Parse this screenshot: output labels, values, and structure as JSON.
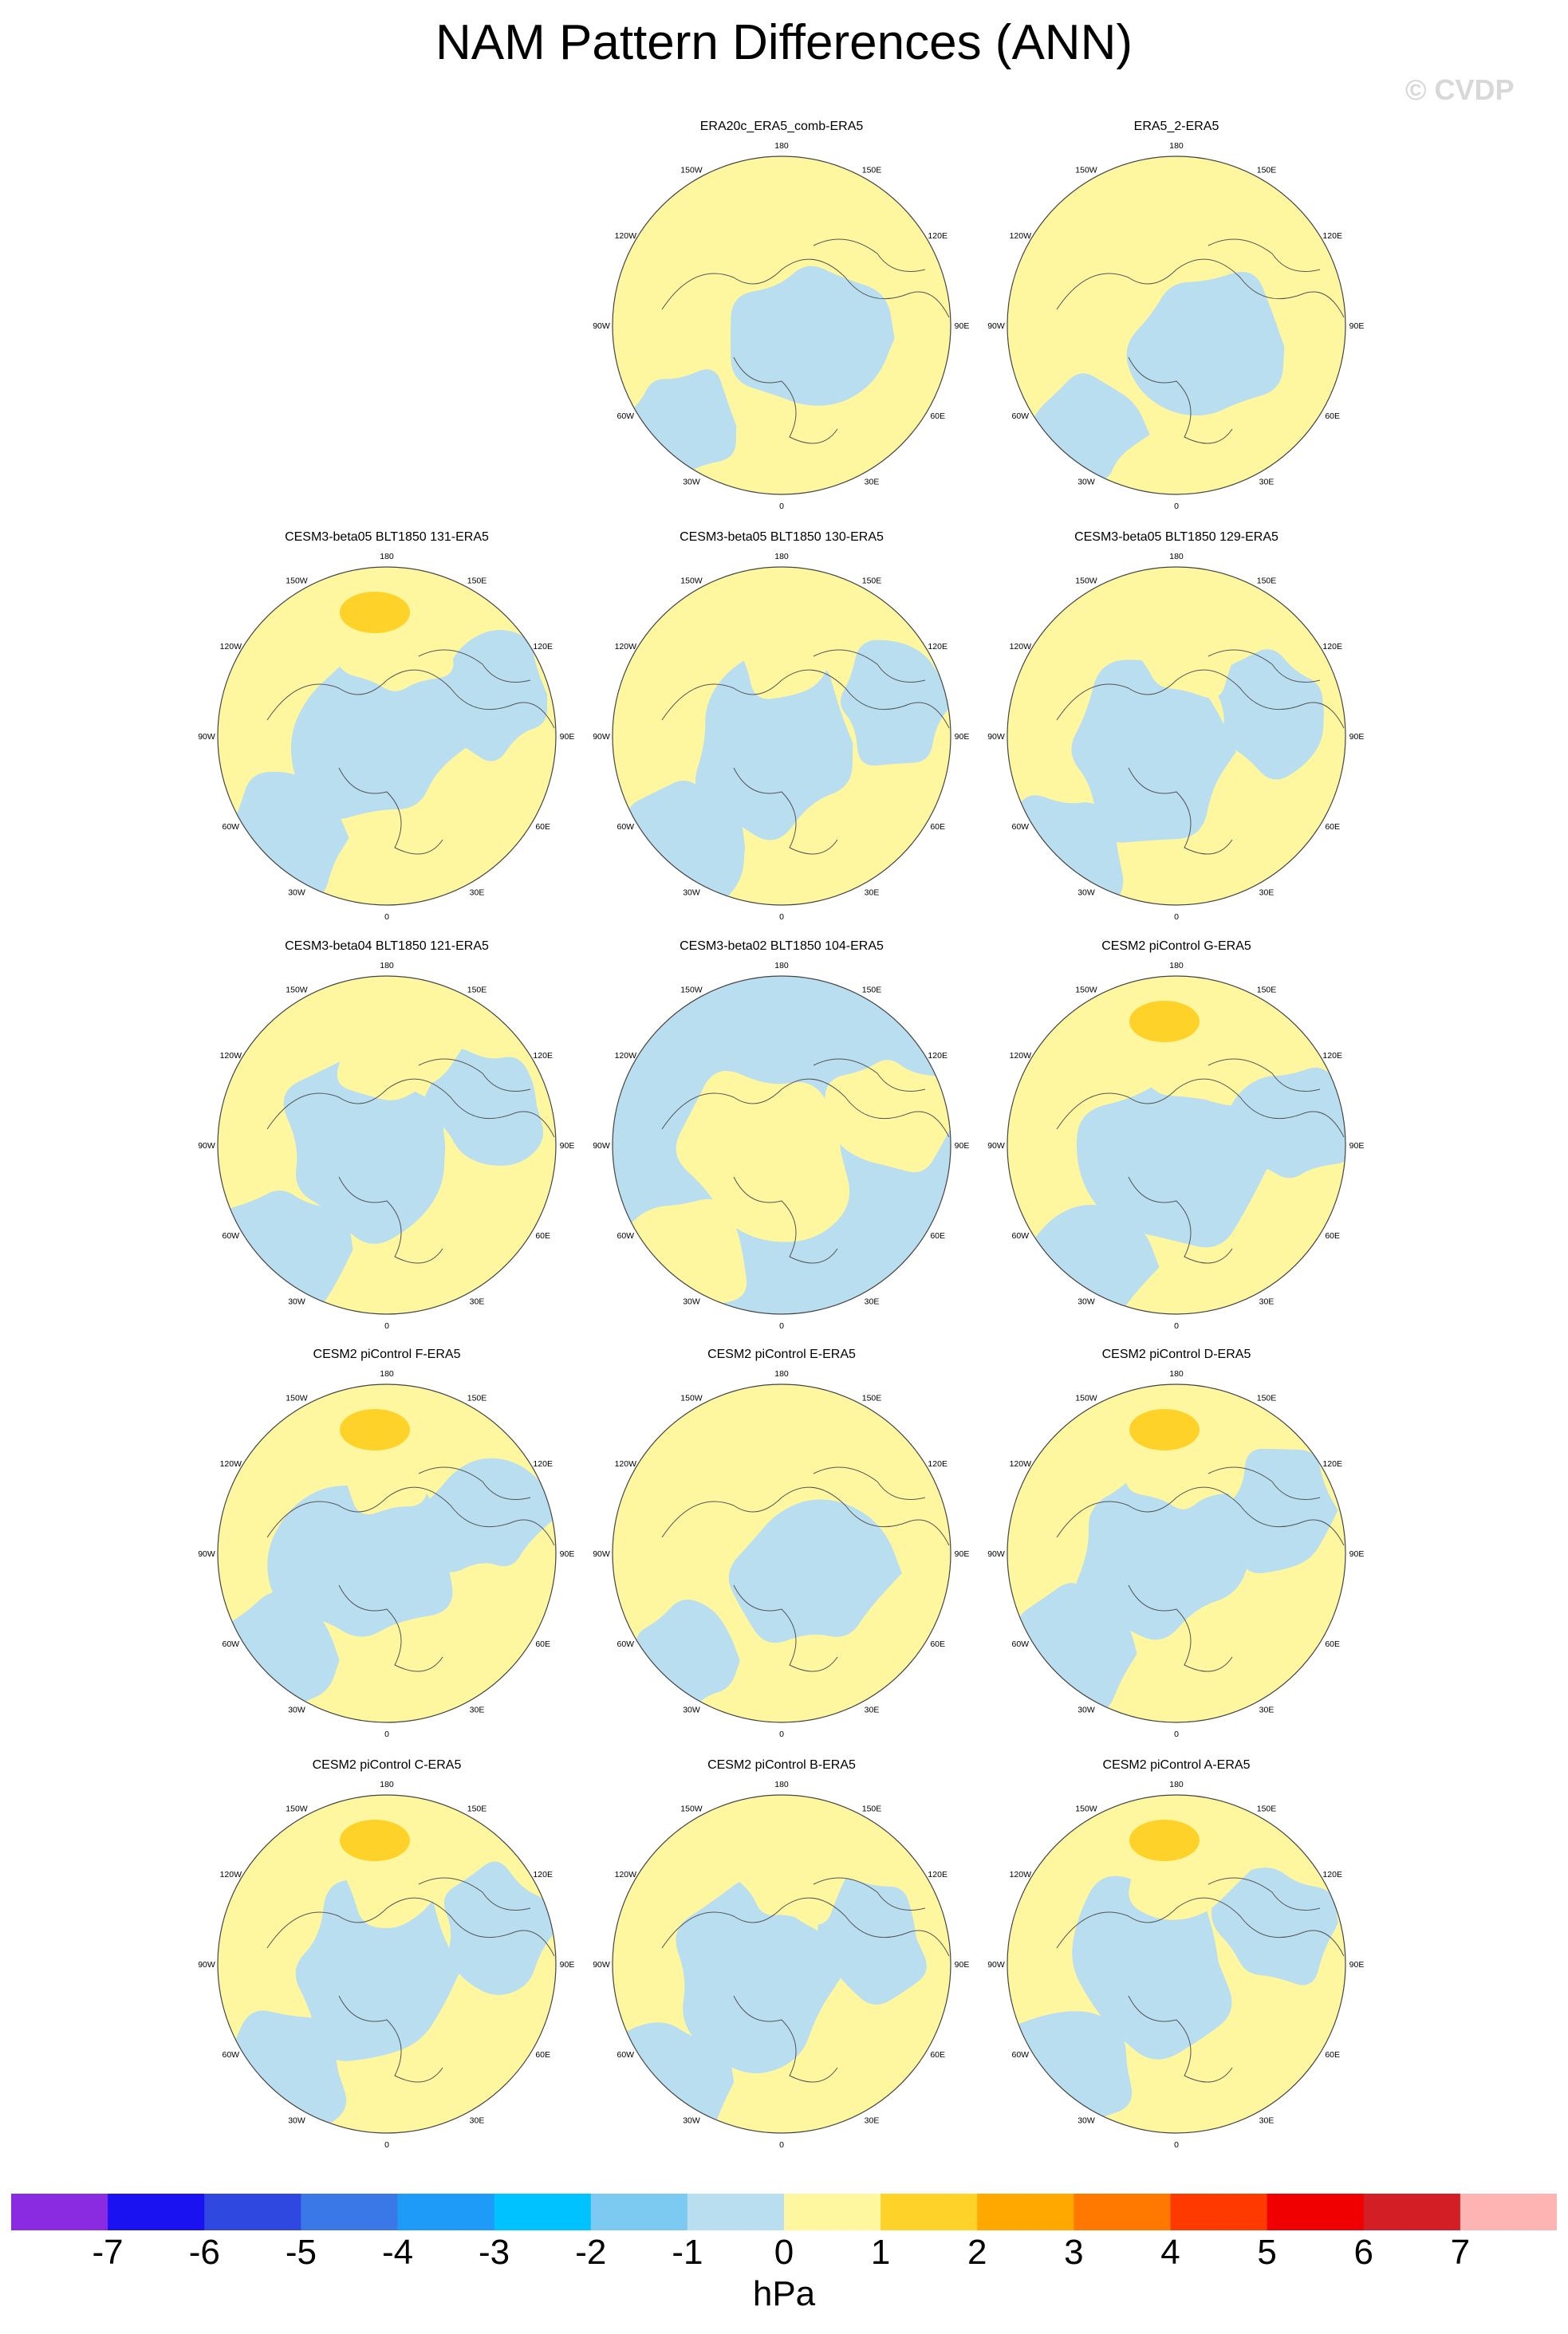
{
  "title": "NAM Pattern Differences (ANN)",
  "watermark": "© CVDP",
  "longitude_labels": [
    "180",
    "150E",
    "120E",
    "90E",
    "60E",
    "30E",
    "0",
    "30W",
    "60W",
    "90W",
    "120W",
    "150W"
  ],
  "panels": [
    {
      "title": "ERA20c_ERA5_comb-ERA5",
      "row": 0,
      "col": 1,
      "dominant": "positive",
      "max_contour": "1"
    },
    {
      "title": "ERA5_2-ERA5",
      "row": 0,
      "col": 2,
      "dominant": "positive",
      "max_contour": "1"
    },
    {
      "title": "CESM3-beta05 BLT1850 131-ERA5",
      "row": 1,
      "col": 0,
      "dominant": "mixed",
      "max_contour": "2"
    },
    {
      "title": "CESM3-beta05 BLT1850 130-ERA5",
      "row": 1,
      "col": 1,
      "dominant": "mixed",
      "max_contour": "1"
    },
    {
      "title": "CESM3-beta05 BLT1850 129-ERA5",
      "row": 1,
      "col": 2,
      "dominant": "mixed",
      "max_contour": "1"
    },
    {
      "title": "CESM3-beta04 BLT1850 121-ERA5",
      "row": 2,
      "col": 0,
      "dominant": "mixed",
      "max_contour": "1"
    },
    {
      "title": "CESM3-beta02 BLT1850 104-ERA5",
      "row": 2,
      "col": 1,
      "dominant": "negative",
      "max_contour": "1"
    },
    {
      "title": "CESM2 piControl G-ERA5",
      "row": 2,
      "col": 2,
      "dominant": "mixed",
      "max_contour": "2"
    },
    {
      "title": "CESM2 piControl F-ERA5",
      "row": 3,
      "col": 0,
      "dominant": "mixed",
      "max_contour": "2"
    },
    {
      "title": "CESM2 piControl E-ERA5",
      "row": 3,
      "col": 1,
      "dominant": "positive",
      "max_contour": "1"
    },
    {
      "title": "CESM2 piControl D-ERA5",
      "row": 3,
      "col": 2,
      "dominant": "mixed",
      "max_contour": "2"
    },
    {
      "title": "CESM2 piControl C-ERA5",
      "row": 4,
      "col": 0,
      "dominant": "mixed",
      "max_contour": "2"
    },
    {
      "title": "CESM2 piControl B-ERA5",
      "row": 4,
      "col": 1,
      "dominant": "mixed",
      "max_contour": "1"
    },
    {
      "title": "CESM2 piControl A-ERA5",
      "row": 4,
      "col": 2,
      "dominant": "mixed",
      "max_contour": "2"
    }
  ],
  "colorbar": {
    "colors": [
      "#8a2be2",
      "#1a12f0",
      "#2e48e0",
      "#3a78e8",
      "#1e9af8",
      "#00c2ff",
      "#7ccaf2",
      "#b8def0",
      "#fff7a0",
      "#ffd22a",
      "#ffa800",
      "#ff7800",
      "#ff3a00",
      "#f00000",
      "#d21e24",
      "#ffb4b4"
    ],
    "tick_labels": [
      "-7",
      "-6",
      "-5",
      "-4",
      "-3",
      "-2",
      "-1",
      "0",
      "1",
      "2",
      "3",
      "4",
      "5",
      "6",
      "7"
    ],
    "units": "hPa"
  }
}
